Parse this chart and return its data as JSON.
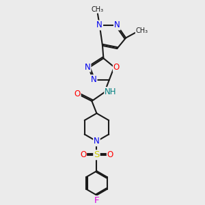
{
  "background_color": "#ebebeb",
  "bond_color": "#1a1a1a",
  "bond_width": 1.5,
  "atom_colors": {
    "N": "#0000ee",
    "O": "#ff0000",
    "F": "#dd00dd",
    "S": "#cccc00",
    "H": "#008080",
    "C": "#1a1a1a"
  },
  "font_size_atom": 8.5,
  "font_size_me": 7.0,
  "figsize": [
    3.0,
    3.0
  ],
  "dpi": 100,
  "xlim": [
    0,
    10
  ],
  "ylim": [
    0,
    10
  ]
}
